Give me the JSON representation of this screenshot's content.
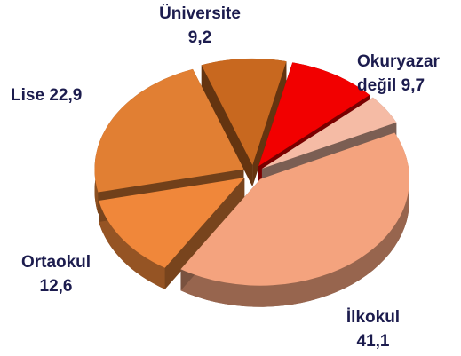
{
  "chart_data": {
    "type": "pie",
    "categories": [
      "Üniversite",
      "Okuryazar değil",
      null,
      "İlkokul",
      "Ortaokul",
      "Lise"
    ],
    "values": [
      9.2,
      9.7,
      4.5,
      41.1,
      12.6,
      22.9
    ],
    "value_labels": [
      "9,2",
      "9,7",
      null,
      "41,1",
      "12,6",
      "22,9"
    ],
    "colors": [
      "#c8681f",
      "#f20000",
      "#f5bba5",
      "#f4a37e",
      "#f0873a",
      "#e17f33"
    ]
  }
}
